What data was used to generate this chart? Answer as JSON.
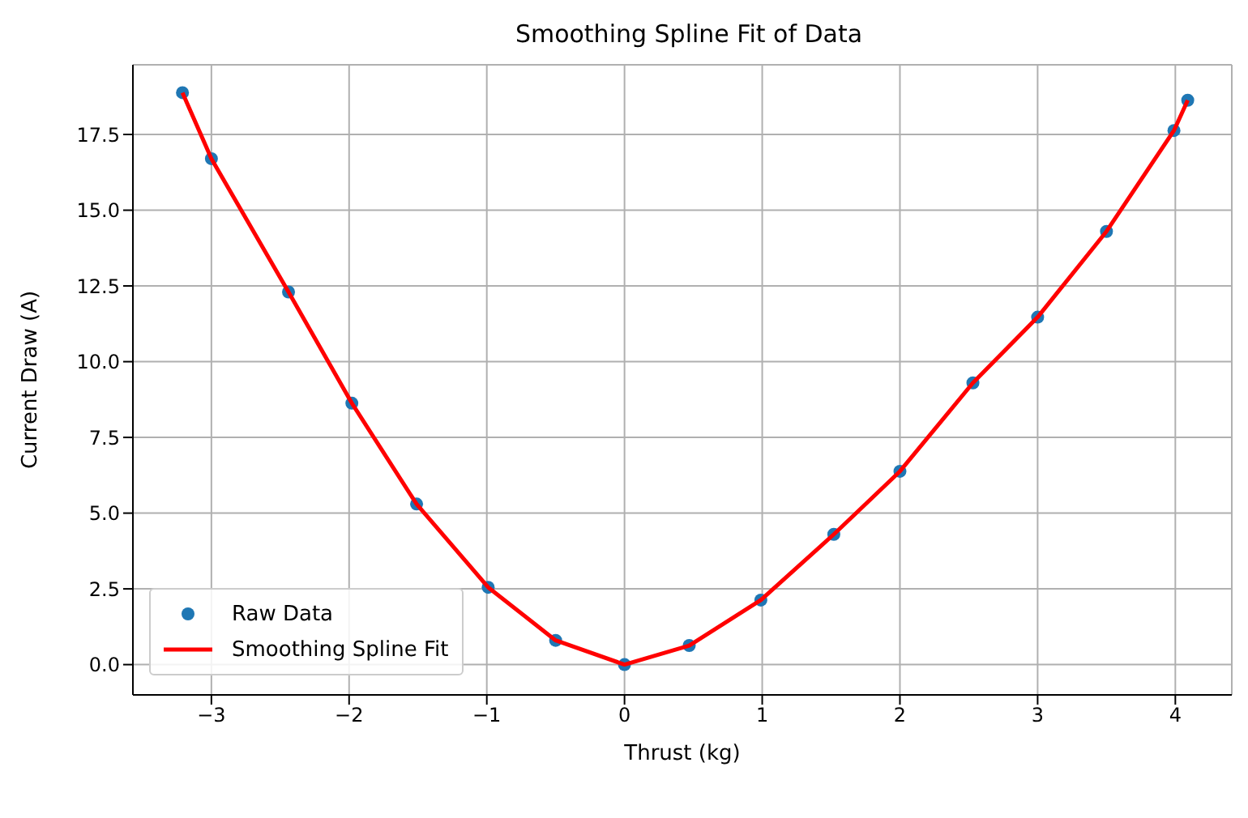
{
  "chart_data": {
    "type": "scatter",
    "title": "Smoothing Spline Fit of Data",
    "xlabel": "Thrust (kg)",
    "ylabel": "Current Draw (A)",
    "xlim": [
      -3.57,
      4.41
    ],
    "xticks": [
      {
        "value": -3,
        "label": "−3"
      },
      {
        "value": -2,
        "label": "−2"
      },
      {
        "value": -1,
        "label": "−1"
      },
      0,
      1,
      2,
      3,
      4
    ],
    "ylim": [
      -1,
      19.8
    ],
    "yticks": [
      {
        "value": 0,
        "label": "0.0"
      },
      {
        "value": 2.5,
        "label": "2.5"
      },
      {
        "value": 5,
        "label": "5.0"
      },
      {
        "value": 7.5,
        "label": "7.5"
      },
      {
        "value": 10,
        "label": "10.0"
      },
      {
        "value": 12.5,
        "label": "12.5"
      },
      {
        "value": 15,
        "label": "15.0"
      },
      {
        "value": 17.5,
        "label": "17.5"
      }
    ],
    "grid": true,
    "legend": "bottom left",
    "series": [
      {
        "name": "Raw Data",
        "marker": "circle",
        "color": "#1f77b4",
        "x": [
          -3.21,
          -3,
          -2.44,
          -1.98,
          -1.51,
          -0.99,
          -0.5,
          0,
          0.47,
          0.99,
          1.52,
          2,
          2.53,
          3,
          3.5,
          3.99,
          4.09
        ],
        "values": [
          18.88,
          16.7,
          12.3,
          8.63,
          5.3,
          2.55,
          0.8,
          0,
          0.63,
          2.13,
          4.3,
          6.38,
          9.3,
          11.47,
          14.3,
          17.63,
          18.63
        ]
      },
      {
        "name": "Smoothing Spline Fit",
        "type": "line",
        "marker": "none",
        "line_style": "solid",
        "color": "#ff0000",
        "x": [
          -3.21,
          -3,
          -2.44,
          -1.98,
          -1.51,
          -0.99,
          -0.5,
          0,
          0.47,
          0.99,
          1.52,
          2,
          2.53,
          3,
          3.5,
          3.99,
          4.09
        ],
        "values": [
          18.88,
          16.7,
          12.3,
          8.63,
          5.3,
          2.55,
          0.8,
          0,
          0.63,
          2.13,
          4.3,
          6.38,
          9.3,
          11.47,
          14.3,
          17.63,
          18.63
        ]
      }
    ]
  }
}
